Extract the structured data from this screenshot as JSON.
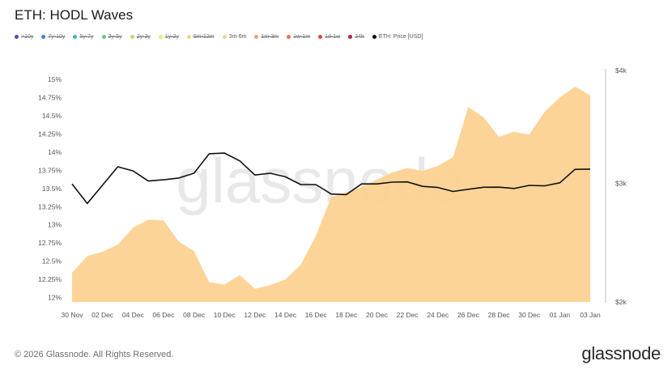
{
  "header": {
    "title": "ETH: HODL Waves"
  },
  "legend": [
    {
      "label": ">10y",
      "color": "#5b4db0",
      "active": false
    },
    {
      "label": "7y-10y",
      "color": "#3f7fd6",
      "active": false
    },
    {
      "label": "5y-7y",
      "color": "#3fb5c8",
      "active": false
    },
    {
      "label": "3y-5y",
      "color": "#6cc57a",
      "active": false
    },
    {
      "label": "2y-3y",
      "color": "#b8d86b",
      "active": false
    },
    {
      "label": "1y-2y",
      "color": "#efe67a",
      "active": false
    },
    {
      "label": "6m-12m",
      "color": "#f5d38a",
      "active": false
    },
    {
      "label": "3m-6m",
      "color": "#fdd08e",
      "active": true
    },
    {
      "label": "1m-3m",
      "color": "#f7a25c",
      "active": false
    },
    {
      "label": "1w-1m",
      "color": "#ef7050",
      "active": false
    },
    {
      "label": "1d-1w",
      "color": "#e0433f",
      "active": false
    },
    {
      "label": "24h",
      "color": "#b51f3c",
      "active": false
    },
    {
      "label": "ETH: Price [USD]",
      "color": "#111111",
      "active": true
    }
  ],
  "chart_data": {
    "type": "area",
    "title": "ETH: HODL Waves",
    "watermark": "glassnode",
    "x": [
      "30 Nov",
      "01 Dec",
      "02 Dec",
      "03 Dec",
      "04 Dec",
      "05 Dec",
      "06 Dec",
      "07 Dec",
      "08 Dec",
      "09 Dec",
      "10 Dec",
      "11 Dec",
      "12 Dec",
      "13 Dec",
      "14 Dec",
      "15 Dec",
      "16 Dec",
      "17 Dec",
      "18 Dec",
      "19 Dec",
      "20 Dec",
      "21 Dec",
      "22 Dec",
      "23 Dec",
      "24 Dec",
      "25 Dec",
      "26 Dec",
      "27 Dec",
      "28 Dec",
      "29 Dec",
      "30 Dec",
      "31 Dec",
      "01 Jan",
      "02 Jan",
      "03 Jan"
    ],
    "x_tick_labels": [
      "30 Nov",
      "02 Dec",
      "04 Dec",
      "06 Dec",
      "08 Dec",
      "10 Dec",
      "12 Dec",
      "14 Dec",
      "16 Dec",
      "18 Dec",
      "20 Dec",
      "22 Dec",
      "24 Dec",
      "26 Dec",
      "28 Dec",
      "30 Dec",
      "01 Jan",
      "03 Jan"
    ],
    "y_left": {
      "ticks": [
        "12%",
        "12.25%",
        "12.5%",
        "12.75%",
        "13%",
        "13.25%",
        "13.5%",
        "13.75%",
        "14%",
        "14.25%",
        "14.5%",
        "14.75%",
        "15%"
      ],
      "range": [
        11.94,
        15.2
      ]
    },
    "y_right": {
      "ticks": [
        "$2k",
        "$3k",
        "$4k"
      ],
      "range": [
        2000,
        4000
      ]
    },
    "series": [
      {
        "name": "3m-6m",
        "type": "area",
        "axis": "left",
        "color": "#fdd08e",
        "values": [
          12.34,
          12.57,
          12.63,
          12.73,
          12.96,
          13.07,
          13.06,
          12.77,
          12.64,
          12.21,
          12.18,
          12.31,
          12.12,
          12.17,
          12.25,
          12.45,
          12.85,
          13.38,
          13.45,
          13.52,
          13.62,
          13.72,
          13.78,
          13.74,
          13.81,
          13.93,
          14.62,
          14.48,
          14.21,
          14.28,
          14.24,
          14.55,
          14.75,
          14.9,
          14.78
        ]
      },
      {
        "name": "ETH: Price [USD]",
        "type": "line",
        "axis": "right",
        "color": "#111111",
        "values": [
          2995,
          2830,
          2985,
          3140,
          3105,
          3020,
          3030,
          3045,
          3085,
          3250,
          3255,
          3190,
          3070,
          3085,
          3055,
          2990,
          2990,
          2910,
          2905,
          2995,
          2995,
          3010,
          3012,
          2975,
          2965,
          2932,
          2950,
          2967,
          2968,
          2957,
          2983,
          2979,
          3005,
          3118,
          3120
        ]
      }
    ]
  },
  "footer": {
    "copyright": "© 2026 Glassnode. All Rights Reserved.",
    "brand": "glassnode"
  }
}
